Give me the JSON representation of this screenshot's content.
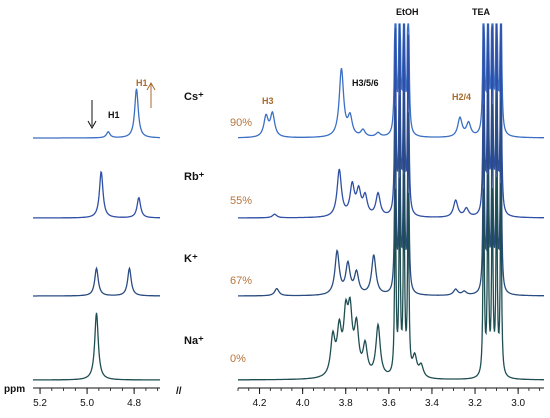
{
  "chart_data": {
    "type": "line",
    "axis_label": "ppm",
    "axis_break": "//",
    "left_panel": {
      "xlim": [
        5.23,
        4.69
      ],
      "ticks": [
        5.2,
        5.0,
        4.8
      ],
      "tick_labels": [
        "5.2",
        "5.0",
        "4.8"
      ]
    },
    "right_panel": {
      "xlim": [
        4.3,
        2.88
      ],
      "ticks": [
        4.2,
        4.0,
        3.8,
        3.6,
        3.4,
        3.2,
        3.0
      ],
      "tick_labels": [
        "4.2",
        "4.0",
        "3.8",
        "3.6",
        "3.4",
        "3.2",
        "3.0"
      ]
    },
    "series": [
      {
        "name": "Cs⁺",
        "percent": "90%",
        "color": "#3b6fc4",
        "left_peaks": [
          {
            "x": 4.91,
            "h": 0.1
          },
          {
            "x": 4.79,
            "h": 0.82
          }
        ],
        "right_peaks": [
          {
            "x": 4.17,
            "h": 0.3
          },
          {
            "x": 4.14,
            "h": 0.34
          },
          {
            "x": 3.82,
            "h": 1.0
          },
          {
            "x": 3.78,
            "h": 0.28
          },
          {
            "x": 3.72,
            "h": 0.1
          },
          {
            "x": 3.65,
            "h": 0.06
          },
          {
            "x": 3.27,
            "h": 0.28
          },
          {
            "x": 3.23,
            "h": 0.2
          }
        ]
      },
      {
        "name": "Rb⁺",
        "percent": "55%",
        "color": "#2f4fa6",
        "left_peaks": [
          {
            "x": 4.94,
            "h": 0.8
          },
          {
            "x": 4.78,
            "h": 0.35
          }
        ],
        "right_peaks": [
          {
            "x": 4.13,
            "h": 0.06
          },
          {
            "x": 3.83,
            "h": 0.78
          },
          {
            "x": 3.77,
            "h": 0.5
          },
          {
            "x": 3.74,
            "h": 0.4
          },
          {
            "x": 3.71,
            "h": 0.32
          },
          {
            "x": 3.65,
            "h": 0.38
          },
          {
            "x": 3.29,
            "h": 0.28
          },
          {
            "x": 3.24,
            "h": 0.14
          }
        ]
      },
      {
        "name": "K⁺",
        "percent": "67%",
        "color": "#2a4c80",
        "left_peaks": [
          {
            "x": 4.96,
            "h": 0.6
          },
          {
            "x": 4.82,
            "h": 0.6
          }
        ],
        "right_peaks": [
          {
            "x": 4.12,
            "h": 0.12
          },
          {
            "x": 3.84,
            "h": 0.72
          },
          {
            "x": 3.79,
            "h": 0.5
          },
          {
            "x": 3.75,
            "h": 0.36
          },
          {
            "x": 3.67,
            "h": 0.66
          },
          {
            "x": 3.29,
            "h": 0.1
          },
          {
            "x": 3.25,
            "h": 0.06
          }
        ]
      },
      {
        "name": "Na⁺",
        "percent": "0%",
        "color": "#1f4e52",
        "left_peaks": [
          {
            "x": 4.96,
            "h": 1.4
          }
        ],
        "right_peaks": [
          {
            "x": 3.86,
            "h": 0.64
          },
          {
            "x": 3.83,
            "h": 0.72
          },
          {
            "x": 3.8,
            "h": 0.9
          },
          {
            "x": 3.78,
            "h": 0.95
          },
          {
            "x": 3.75,
            "h": 0.78
          },
          {
            "x": 3.71,
            "h": 0.5
          },
          {
            "x": 3.65,
            "h": 0.86
          },
          {
            "x": 3.48,
            "h": 0.34
          },
          {
            "x": 3.45,
            "h": 0.2
          }
        ]
      }
    ],
    "solvent_peaks": [
      {
        "name": "EtOH",
        "x": [
          3.57,
          3.55,
          3.53,
          3.51
        ]
      },
      {
        "name": "TEA",
        "x": [
          3.16,
          3.14,
          3.12,
          3.1,
          3.08
        ]
      }
    ],
    "annotations": [
      {
        "text": "H1",
        "color": "#111111"
      },
      {
        "text": "H1",
        "color": "#a86a2c"
      },
      {
        "text": "H3",
        "color": "#a86a2c"
      },
      {
        "text": "H3/5/6",
        "color": "#111111"
      },
      {
        "text": "H2/4",
        "color": "#a86a2c"
      },
      {
        "text": "EtOH",
        "color": "#111111"
      },
      {
        "text": "TEA",
        "color": "#111111"
      }
    ]
  }
}
